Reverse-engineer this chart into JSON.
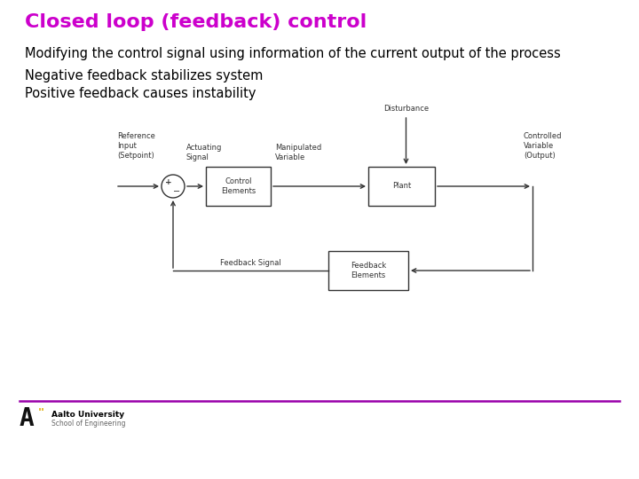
{
  "title": "Closed loop (feedback) control",
  "title_color": "#CC00CC",
  "title_fontsize": 16,
  "bullet1": "Modifying the control signal using information of the current output of the process",
  "bullet2": "Negative feedback stabilizes system",
  "bullet3": "Positive feedback causes instability",
  "text_fontsize": 10.5,
  "bg_color": "#FFFFFF",
  "diagram_line_color": "#333333",
  "footer_line_color": "#9900AA",
  "logo_A_color": "#111111",
  "logo_quote_color": "#DDAA00",
  "diag_label_fontsize": 6.0,
  "diag_label_color": "#333333"
}
